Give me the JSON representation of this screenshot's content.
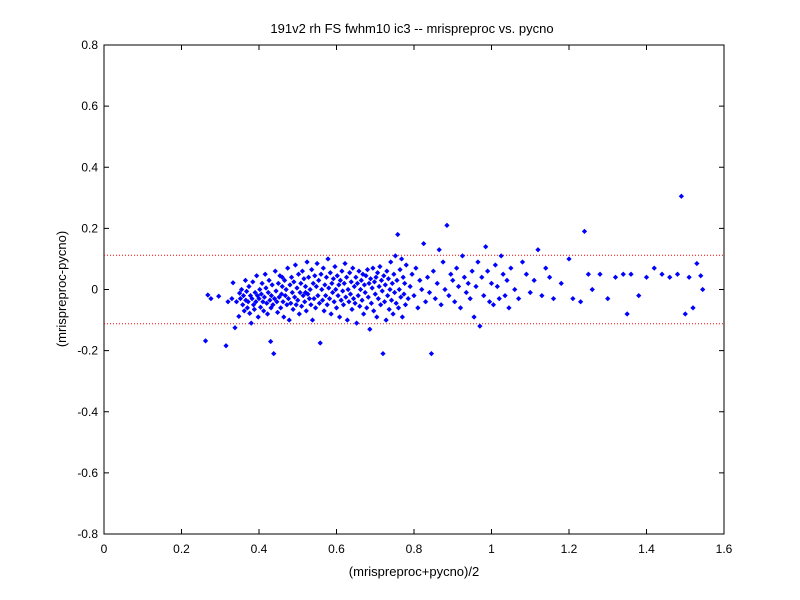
{
  "chart_data": {
    "type": "scatter",
    "title": "191v2 rh FS fwhm10 ic3 -- mrispreproc vs. pycno",
    "xlabel": "(mrispreproc+pycno)/2",
    "ylabel": "(mrispreproc-pycno)",
    "xlim": [
      0,
      1.6
    ],
    "ylim": [
      -0.8,
      0.8
    ],
    "x_ticks": [
      0,
      0.2,
      0.4,
      0.6,
      0.8,
      1.0,
      1.2,
      1.4,
      1.6
    ],
    "x_tick_labels": [
      "0",
      "0.2",
      "0.4",
      "0.6",
      "0.8",
      "1",
      "1.2",
      "1.4",
      "1.6"
    ],
    "y_ticks": [
      -0.8,
      -0.6,
      -0.4,
      -0.2,
      0,
      0.2,
      0.4,
      0.6,
      0.8
    ],
    "y_tick_labels": [
      "-0.8",
      "-0.6",
      "-0.4",
      "-0.2",
      "0",
      "0.2",
      "0.4",
      "0.6",
      "0.8"
    ],
    "grid": false,
    "marker_color": "#0000ff",
    "reference_line_color": "#ff0000",
    "reference_lines": [
      0.112,
      -0.112
    ],
    "points": [
      [
        0.262,
        -0.168
      ],
      [
        0.268,
        -0.018
      ],
      [
        0.276,
        -0.03
      ],
      [
        0.296,
        -0.022
      ],
      [
        0.315,
        -0.184
      ],
      [
        0.32,
        -0.04
      ],
      [
        0.33,
        -0.03
      ],
      [
        0.333,
        0.022
      ],
      [
        0.338,
        -0.125
      ],
      [
        0.342,
        -0.04
      ],
      [
        0.348,
        -0.088
      ],
      [
        0.35,
        -0.012
      ],
      [
        0.352,
        -0.03
      ],
      [
        0.355,
        0.0
      ],
      [
        0.358,
        -0.05
      ],
      [
        0.36,
        -0.02
      ],
      [
        0.362,
        -0.07
      ],
      [
        0.365,
        0.03
      ],
      [
        0.366,
        -0.035
      ],
      [
        0.368,
        -0.006
      ],
      [
        0.37,
        -0.06
      ],
      [
        0.372,
        -0.04
      ],
      [
        0.374,
        0.01
      ],
      [
        0.376,
        -0.078
      ],
      [
        0.378,
        -0.02
      ],
      [
        0.38,
        -0.11
      ],
      [
        0.382,
        -0.03
      ],
      [
        0.384,
        0.025
      ],
      [
        0.386,
        -0.05
      ],
      [
        0.388,
        -0.065
      ],
      [
        0.39,
        -0.01
      ],
      [
        0.392,
        -0.04
      ],
      [
        0.394,
        0.045
      ],
      [
        0.396,
        -0.02
      ],
      [
        0.398,
        -0.09
      ],
      [
        0.4,
        -0.03
      ],
      [
        0.402,
        0.0
      ],
      [
        0.404,
        -0.058
      ],
      [
        0.406,
        -0.015
      ],
      [
        0.408,
        0.02
      ],
      [
        0.41,
        -0.04
      ],
      [
        0.412,
        -0.07
      ],
      [
        0.414,
        -0.025
      ],
      [
        0.416,
        0.05
      ],
      [
        0.418,
        0.005
      ],
      [
        0.42,
        -0.045
      ],
      [
        0.422,
        -0.08
      ],
      [
        0.424,
        -0.01
      ],
      [
        0.426,
        0.03
      ],
      [
        0.428,
        -0.035
      ],
      [
        0.43,
        -0.17
      ],
      [
        0.431,
        -0.06
      ],
      [
        0.432,
        -0.02
      ],
      [
        0.434,
        0.015
      ],
      [
        0.436,
        -0.05
      ],
      [
        0.438,
        -0.21
      ],
      [
        0.44,
        -0.03
      ],
      [
        0.442,
        0.06
      ],
      [
        0.444,
        -0.005
      ],
      [
        0.446,
        -0.04
      ],
      [
        0.448,
        -0.075
      ],
      [
        0.45,
        0.02
      ],
      [
        0.452,
        -0.025
      ],
      [
        0.454,
        0.045
      ],
      [
        0.456,
        -0.06
      ],
      [
        0.458,
        -0.015
      ],
      [
        0.46,
        0.01
      ],
      [
        0.462,
        -0.04
      ],
      [
        0.464,
        -0.09
      ],
      [
        0.466,
        0.03
      ],
      [
        0.468,
        -0.02
      ],
      [
        0.47,
        0.0
      ],
      [
        0.472,
        -0.05
      ],
      [
        0.474,
        0.07
      ],
      [
        0.476,
        -0.03
      ],
      [
        0.478,
        -0.1
      ],
      [
        0.48,
        0.015
      ],
      [
        0.482,
        -0.045
      ],
      [
        0.484,
        0.04
      ],
      [
        0.486,
        -0.01
      ],
      [
        0.488,
        -0.065
      ],
      [
        0.49,
        0.025
      ],
      [
        0.492,
        -0.025
      ],
      [
        0.494,
        0.08
      ],
      [
        0.496,
        -0.05
      ],
      [
        0.498,
        0.005
      ],
      [
        0.5,
        -0.035
      ],
      [
        0.502,
        0.05
      ],
      [
        0.504,
        -0.08
      ],
      [
        0.506,
        -0.01
      ],
      [
        0.508,
        0.02
      ],
      [
        0.51,
        -0.055
      ],
      [
        0.512,
        0.06
      ],
      [
        0.514,
        -0.02
      ],
      [
        0.516,
        0.035
      ],
      [
        0.518,
        -0.04
      ],
      [
        0.52,
        0.01
      ],
      [
        0.522,
        -0.07
      ],
      [
        0.524,
        0.09
      ],
      [
        0.526,
        -0.015
      ],
      [
        0.528,
        0.04
      ],
      [
        0.53,
        -0.03
      ],
      [
        0.532,
        0.0
      ],
      [
        0.534,
        -0.05
      ],
      [
        0.536,
        0.065
      ],
      [
        0.538,
        -0.1
      ],
      [
        0.54,
        0.02
      ],
      [
        0.542,
        -0.03
      ],
      [
        0.544,
        0.045
      ],
      [
        0.546,
        -0.06
      ],
      [
        0.548,
        0.01
      ],
      [
        0.55,
        0.085
      ],
      [
        0.552,
        -0.02
      ],
      [
        0.554,
        0.03
      ],
      [
        0.556,
        -0.045
      ],
      [
        0.558,
        -0.175
      ],
      [
        0.56,
        0.05
      ],
      [
        0.562,
        0.0
      ],
      [
        0.564,
        -0.035
      ],
      [
        0.566,
        0.07
      ],
      [
        0.568,
        -0.07
      ],
      [
        0.57,
        0.015
      ],
      [
        0.572,
        -0.02
      ],
      [
        0.574,
        0.04
      ],
      [
        0.576,
        -0.05
      ],
      [
        0.578,
        0.1
      ],
      [
        0.58,
        0.005
      ],
      [
        0.582,
        -0.03
      ],
      [
        0.584,
        0.055
      ],
      [
        0.586,
        -0.08
      ],
      [
        0.588,
        0.02
      ],
      [
        0.59,
        -0.01
      ],
      [
        0.592,
        0.035
      ],
      [
        0.594,
        -0.04
      ],
      [
        0.596,
        0.075
      ],
      [
        0.598,
        0.0
      ],
      [
        0.6,
        -0.06
      ],
      [
        0.602,
        0.045
      ],
      [
        0.604,
        -0.02
      ],
      [
        0.606,
        0.015
      ],
      [
        0.608,
        -0.09
      ],
      [
        0.61,
        0.03
      ],
      [
        0.612,
        -0.035
      ],
      [
        0.614,
        0.06
      ],
      [
        0.616,
        -0.005
      ],
      [
        0.618,
        -0.05
      ],
      [
        0.62,
        0.02
      ],
      [
        0.622,
        0.085
      ],
      [
        0.624,
        -0.025
      ],
      [
        0.626,
        0.04
      ],
      [
        0.628,
        -0.1
      ],
      [
        0.63,
        0.0
      ],
      [
        0.632,
        -0.04
      ],
      [
        0.634,
        0.055
      ],
      [
        0.636,
        -0.015
      ],
      [
        0.638,
        0.025
      ],
      [
        0.64,
        -0.065
      ],
      [
        0.642,
        0.07
      ],
      [
        0.644,
        -0.03
      ],
      [
        0.646,
        0.01
      ],
      [
        0.648,
        -0.045
      ],
      [
        0.65,
        0.04
      ],
      [
        0.652,
        -0.11
      ],
      [
        0.654,
        0.02
      ],
      [
        0.656,
        -0.02
      ],
      [
        0.658,
        0.06
      ],
      [
        0.66,
        -0.055
      ],
      [
        0.662,
        0.0
      ],
      [
        0.664,
        0.03
      ],
      [
        0.666,
        -0.035
      ],
      [
        0.668,
        0.05
      ],
      [
        0.67,
        -0.08
      ],
      [
        0.672,
        0.015
      ],
      [
        0.674,
        -0.01
      ],
      [
        0.676,
        0.045
      ],
      [
        0.678,
        -0.06
      ],
      [
        0.68,
        0.065
      ],
      [
        0.682,
        -0.025
      ],
      [
        0.684,
        0.02
      ],
      [
        0.686,
        -0.13
      ],
      [
        0.688,
        0.035
      ],
      [
        0.69,
        -0.045
      ],
      [
        0.692,
        0.005
      ],
      [
        0.694,
        0.07
      ],
      [
        0.696,
        -0.07
      ],
      [
        0.698,
        0.025
      ],
      [
        0.7,
        -0.015
      ],
      [
        0.702,
        0.04
      ],
      [
        0.704,
        -0.09
      ],
      [
        0.706,
        0.055
      ],
      [
        0.708,
        -0.03
      ],
      [
        0.71,
        0.01
      ],
      [
        0.712,
        0.075
      ],
      [
        0.714,
        -0.05
      ],
      [
        0.716,
        0.03
      ],
      [
        0.718,
        -0.005
      ],
      [
        0.72,
        -0.21
      ],
      [
        0.722,
        0.045
      ],
      [
        0.724,
        -0.04
      ],
      [
        0.726,
        0.015
      ],
      [
        0.728,
        -0.1
      ],
      [
        0.73,
        0.06
      ],
      [
        0.732,
        -0.02
      ],
      [
        0.734,
        0.035
      ],
      [
        0.736,
        -0.065
      ],
      [
        0.738,
        0.0
      ],
      [
        0.74,
        0.09
      ],
      [
        0.742,
        -0.035
      ],
      [
        0.744,
        0.02
      ],
      [
        0.746,
        -0.08
      ],
      [
        0.748,
        0.05
      ],
      [
        0.75,
        -0.01
      ],
      [
        0.752,
        0.11
      ],
      [
        0.754,
        -0.045
      ],
      [
        0.756,
        0.03
      ],
      [
        0.758,
        0.18
      ],
      [
        0.76,
        -0.06
      ],
      [
        0.762,
        0.0
      ],
      [
        0.764,
        0.065
      ],
      [
        0.766,
        -0.025
      ],
      [
        0.768,
        0.1
      ],
      [
        0.77,
        -0.09
      ],
      [
        0.772,
        0.04
      ],
      [
        0.774,
        -0.015
      ],
      [
        0.776,
        0.02
      ],
      [
        0.778,
        -0.05
      ],
      [
        0.78,
        0.08
      ],
      [
        0.785,
        -0.03
      ],
      [
        0.79,
        0.01
      ],
      [
        0.795,
        0.05
      ],
      [
        0.8,
        -0.02
      ],
      [
        0.805,
        0.07
      ],
      [
        0.81,
        -0.06
      ],
      [
        0.815,
        0.03
      ],
      [
        0.82,
        0.0
      ],
      [
        0.825,
        0.15
      ],
      [
        0.83,
        -0.04
      ],
      [
        0.835,
        0.04
      ],
      [
        0.84,
        -0.01
      ],
      [
        0.845,
        -0.21
      ],
      [
        0.85,
        0.06
      ],
      [
        0.855,
        -0.03
      ],
      [
        0.86,
        0.02
      ],
      [
        0.865,
        0.13
      ],
      [
        0.87,
        -0.05
      ],
      [
        0.875,
        0.09
      ],
      [
        0.88,
        0.0
      ],
      [
        0.885,
        0.21
      ],
      [
        0.89,
        -0.02
      ],
      [
        0.895,
        0.05
      ],
      [
        0.9,
        0.03
      ],
      [
        0.905,
        -0.04
      ],
      [
        0.91,
        0.07
      ],
      [
        0.915,
        0.01
      ],
      [
        0.92,
        -0.06
      ],
      [
        0.925,
        0.11
      ],
      [
        0.93,
        0.04
      ],
      [
        0.935,
        -0.01
      ],
      [
        0.94,
        0.02
      ],
      [
        0.945,
        -0.03
      ],
      [
        0.95,
        0.06
      ],
      [
        0.955,
        -0.09
      ],
      [
        0.96,
        0.01
      ],
      [
        0.965,
        0.09
      ],
      [
        0.97,
        -0.12
      ],
      [
        0.975,
        0.04
      ],
      [
        0.98,
        -0.02
      ],
      [
        0.985,
        0.14
      ],
      [
        0.99,
        0.06
      ],
      [
        0.995,
        -0.04
      ],
      [
        1.0,
        0.02
      ],
      [
        1.005,
        -0.05
      ],
      [
        1.01,
        0.08
      ],
      [
        1.015,
        0.01
      ],
      [
        1.02,
        -0.03
      ],
      [
        1.025,
        0.11
      ],
      [
        1.03,
        0.05
      ],
      [
        1.035,
        -0.02
      ],
      [
        1.04,
        0.03
      ],
      [
        1.045,
        -0.06
      ],
      [
        1.05,
        0.07
      ],
      [
        1.06,
        0.0
      ],
      [
        1.07,
        -0.03
      ],
      [
        1.08,
        0.09
      ],
      [
        1.09,
        0.05
      ],
      [
        1.1,
        -0.01
      ],
      [
        1.11,
        0.03
      ],
      [
        1.12,
        0.13
      ],
      [
        1.13,
        -0.02
      ],
      [
        1.14,
        0.07
      ],
      [
        1.15,
        0.04
      ],
      [
        1.16,
        -0.03
      ],
      [
        1.18,
        0.02
      ],
      [
        1.2,
        0.1
      ],
      [
        1.21,
        -0.03
      ],
      [
        1.23,
        -0.04
      ],
      [
        1.24,
        0.19
      ],
      [
        1.25,
        0.05
      ],
      [
        1.26,
        0.0
      ],
      [
        1.28,
        0.05
      ],
      [
        1.3,
        -0.03
      ],
      [
        1.32,
        0.04
      ],
      [
        1.34,
        0.05
      ],
      [
        1.35,
        -0.08
      ],
      [
        1.36,
        0.05
      ],
      [
        1.38,
        -0.02
      ],
      [
        1.4,
        0.04
      ],
      [
        1.42,
        0.07
      ],
      [
        1.44,
        0.05
      ],
      [
        1.46,
        0.04
      ],
      [
        1.48,
        0.05
      ],
      [
        1.49,
        0.305
      ],
      [
        1.5,
        -0.08
      ],
      [
        1.51,
        0.04
      ],
      [
        1.52,
        -0.06
      ],
      [
        1.53,
        0.085
      ],
      [
        1.54,
        0.045
      ],
      [
        1.545,
        0.0
      ],
      [
        0.52,
        -0.01
      ],
      [
        0.46,
        0.04
      ]
    ]
  }
}
